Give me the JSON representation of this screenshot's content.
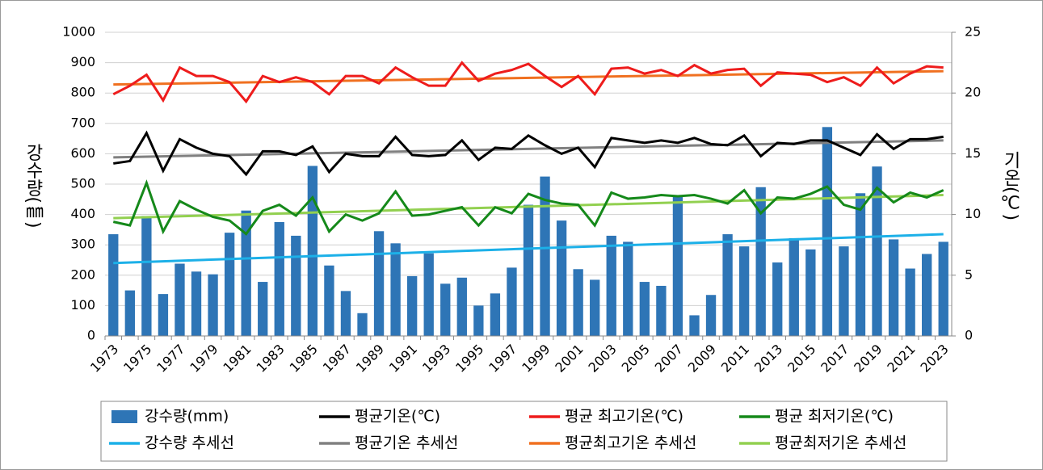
{
  "chart_data": {
    "type": "bar-line",
    "y_label": "강수량(㎜)",
    "y2_label": "기온(℃)",
    "categories": [
      "1973",
      null,
      "1975",
      null,
      "1977",
      null,
      "1979",
      null,
      "1981",
      null,
      "1983",
      null,
      "1985",
      null,
      "1987",
      null,
      "1989",
      null,
      "1991",
      null,
      "1993",
      null,
      "1995",
      null,
      "1997",
      null,
      "1999",
      null,
      "2001",
      null,
      "2003",
      null,
      "2005",
      null,
      "2007",
      null,
      "2009",
      null,
      "2011",
      null,
      "2013",
      null,
      "2015",
      null,
      "2017",
      null,
      "2019",
      null,
      "2021",
      null,
      "2023"
    ],
    "series": [
      {
        "name": "강수량(mm)",
        "type": "bar",
        "color": "#2e75b6",
        "values": [
          335,
          150,
          395,
          138,
          238,
          212,
          203,
          340,
          413,
          178,
          375,
          330,
          560,
          232,
          148,
          75,
          345,
          305,
          197,
          272,
          172,
          192,
          100,
          140,
          225,
          432,
          525,
          380,
          220,
          185,
          330,
          310,
          178,
          165,
          460,
          68,
          135,
          335,
          295,
          490,
          242,
          322,
          285,
          688,
          295,
          470,
          558,
          318,
          222,
          270,
          310
        ]
      },
      {
        "name": "평균기온(℃)",
        "type": "line",
        "axis": "y2",
        "color": "#000000",
        "values": [
          14.2,
          14.4,
          16.7,
          13.6,
          16.2,
          15.5,
          15.0,
          14.8,
          13.3,
          15.2,
          15.2,
          14.9,
          15.6,
          13.5,
          15.0,
          14.8,
          14.8,
          16.4,
          14.9,
          14.8,
          14.9,
          16.1,
          14.5,
          15.5,
          15.4,
          16.5,
          15.7,
          15.0,
          15.5,
          13.9,
          16.3,
          16.1,
          15.9,
          16.1,
          15.9,
          16.3,
          15.8,
          15.7,
          16.5,
          14.8,
          15.9,
          15.8,
          16.1,
          16.1,
          15.5,
          14.9,
          16.6,
          15.4,
          16.2,
          16.2,
          16.4
        ]
      },
      {
        "name": "평균 최고기온(℃)",
        "type": "line",
        "axis": "y2",
        "color": "#ee1c1c",
        "values": [
          19.9,
          20.6,
          21.5,
          19.4,
          22.1,
          21.4,
          21.4,
          20.9,
          19.3,
          21.4,
          20.9,
          21.3,
          20.9,
          19.9,
          21.4,
          21.4,
          20.8,
          22.1,
          21.3,
          20.6,
          20.6,
          22.5,
          21.0,
          21.6,
          21.9,
          22.4,
          21.4,
          20.5,
          21.4,
          19.9,
          22.0,
          22.1,
          21.6,
          21.9,
          21.4,
          22.3,
          21.6,
          21.9,
          22.0,
          20.6,
          21.7,
          21.6,
          21.5,
          20.9,
          21.3,
          20.6,
          22.1,
          20.8,
          21.6,
          22.2,
          22.1
        ]
      },
      {
        "name": "평균 최저기온(℃)",
        "type": "line",
        "axis": "y2",
        "color": "#15891a",
        "values": [
          9.4,
          9.1,
          12.6,
          8.6,
          11.1,
          10.4,
          9.8,
          9.5,
          8.4,
          10.3,
          10.8,
          9.9,
          11.4,
          8.6,
          10.0,
          9.5,
          10.1,
          11.9,
          9.9,
          10.0,
          10.3,
          10.6,
          9.1,
          10.6,
          10.1,
          11.7,
          11.2,
          10.9,
          10.8,
          9.1,
          11.8,
          11.3,
          11.4,
          11.6,
          11.5,
          11.6,
          11.3,
          10.9,
          12.0,
          10.1,
          11.4,
          11.3,
          11.7,
          12.3,
          10.8,
          10.4,
          12.2,
          11.0,
          11.8,
          11.4,
          12.0
        ]
      }
    ],
    "trendlines": [
      {
        "name": "강수량 추세선",
        "color": "#1cb0e8",
        "from": 240,
        "to": 335
      },
      {
        "name": "평균기온 추세선",
        "color": "#808080",
        "axis": "y2",
        "from": 14.7,
        "to": 16.1
      },
      {
        "name": "평균최고기온 추세선",
        "color": "#f07020",
        "axis": "y2",
        "from": 20.7,
        "to": 21.8
      },
      {
        "name": "평균최저기온 추세선",
        "color": "#92d050",
        "axis": "y2",
        "from": 9.7,
        "to": 11.6
      }
    ],
    "ylim": [
      0,
      1000
    ],
    "yticks": [
      0,
      100,
      200,
      300,
      400,
      500,
      600,
      700,
      800,
      900,
      1000
    ],
    "y2lim": [
      0,
      25
    ],
    "y2ticks": [
      0,
      5,
      10,
      15,
      20,
      25
    ],
    "grid": true
  }
}
